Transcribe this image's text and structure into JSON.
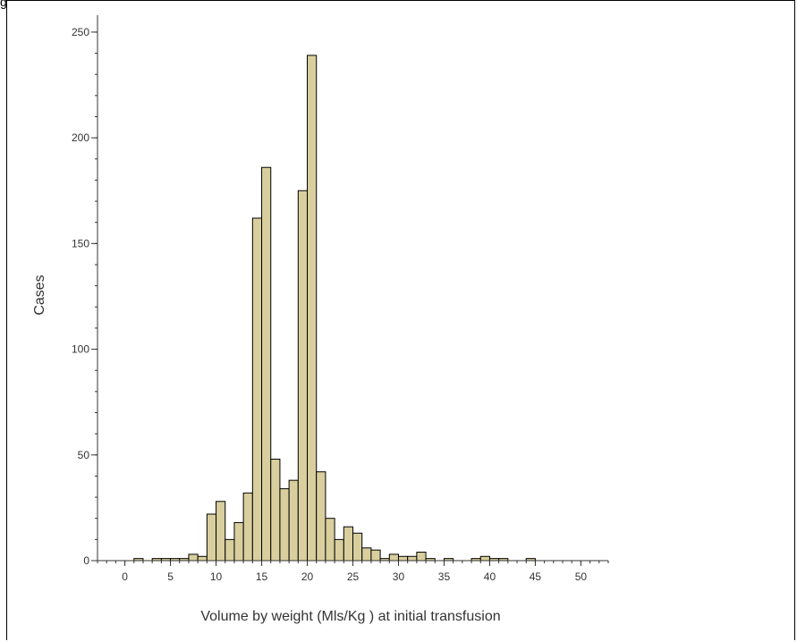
{
  "figure": {
    "corner_label": "g"
  },
  "chart_data": {
    "type": "bar",
    "xlabel": "Volume by weight (Mls/Kg ) at initial transfusion",
    "ylabel": "Cases",
    "xlim": [
      -3,
      53
    ],
    "ylim": [
      0,
      258
    ],
    "x_ticks": [
      0,
      5,
      10,
      15,
      20,
      25,
      30,
      35,
      40,
      45,
      50
    ],
    "y_ticks": [
      0,
      50,
      100,
      150,
      200,
      250
    ],
    "bin_width": 1,
    "bins": [
      {
        "x": 1.5,
        "count": 1
      },
      {
        "x": 3.5,
        "count": 1
      },
      {
        "x": 4.5,
        "count": 1
      },
      {
        "x": 5.5,
        "count": 1
      },
      {
        "x": 6.5,
        "count": 1
      },
      {
        "x": 7.5,
        "count": 3
      },
      {
        "x": 8.5,
        "count": 2
      },
      {
        "x": 9.5,
        "count": 22
      },
      {
        "x": 10.5,
        "count": 28
      },
      {
        "x": 11.5,
        "count": 10
      },
      {
        "x": 12.5,
        "count": 18
      },
      {
        "x": 13.5,
        "count": 32
      },
      {
        "x": 14.5,
        "count": 162
      },
      {
        "x": 15.5,
        "count": 186
      },
      {
        "x": 16.5,
        "count": 48
      },
      {
        "x": 17.5,
        "count": 34
      },
      {
        "x": 18.5,
        "count": 38
      },
      {
        "x": 19.5,
        "count": 175
      },
      {
        "x": 20.5,
        "count": 239
      },
      {
        "x": 21.5,
        "count": 42
      },
      {
        "x": 22.5,
        "count": 20
      },
      {
        "x": 23.5,
        "count": 10
      },
      {
        "x": 24.5,
        "count": 16
      },
      {
        "x": 25.5,
        "count": 13
      },
      {
        "x": 26.5,
        "count": 6
      },
      {
        "x": 27.5,
        "count": 5
      },
      {
        "x": 28.5,
        "count": 1
      },
      {
        "x": 29.5,
        "count": 3
      },
      {
        "x": 30.5,
        "count": 2
      },
      {
        "x": 31.5,
        "count": 2
      },
      {
        "x": 32.5,
        "count": 4
      },
      {
        "x": 33.5,
        "count": 1
      },
      {
        "x": 35.5,
        "count": 1
      },
      {
        "x": 38.5,
        "count": 1
      },
      {
        "x": 39.5,
        "count": 2
      },
      {
        "x": 40.5,
        "count": 1
      },
      {
        "x": 41.5,
        "count": 1
      },
      {
        "x": 44.5,
        "count": 1
      }
    ],
    "colors": {
      "bar_fill": "#D9CF9E",
      "bar_stroke": "#000000",
      "axis": "#333333"
    },
    "grid": false,
    "legend": "none"
  }
}
